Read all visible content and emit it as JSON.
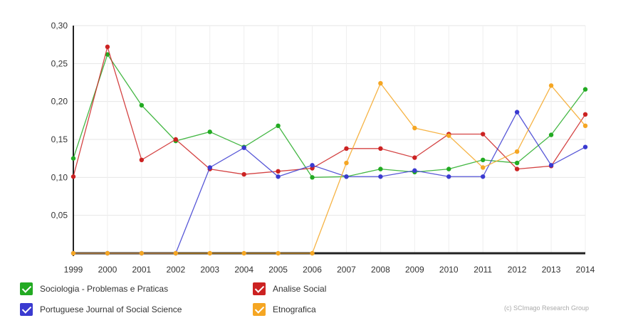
{
  "chart_data": {
    "type": "line",
    "x": [
      "1999",
      "2000",
      "2001",
      "2002",
      "2003",
      "2004",
      "2005",
      "2006",
      "2007",
      "2008",
      "2009",
      "2010",
      "2011",
      "2012",
      "2013",
      "2014"
    ],
    "ylim": [
      0,
      0.3
    ],
    "yticks": [
      "0,30",
      "0,25",
      "0,20",
      "0,15",
      "0,10",
      "0,05"
    ],
    "ytick_values": [
      0.3,
      0.25,
      0.2,
      0.15,
      0.1,
      0.05
    ],
    "grid": true,
    "legend_position": "bottom",
    "series": [
      {
        "name": "Sociologia - Problemas e Praticas",
        "color": "#22aa22",
        "values": [
          0.125,
          0.262,
          0.195,
          0.148,
          0.16,
          0.14,
          0.168,
          0.1,
          0.101,
          0.111,
          0.107,
          0.111,
          0.123,
          0.119,
          0.156,
          0.216
        ]
      },
      {
        "name": "Analise Social",
        "color": "#cc2222",
        "values": [
          0.101,
          0.272,
          0.123,
          0.15,
          0.111,
          0.104,
          0.108,
          0.112,
          0.138,
          0.138,
          0.126,
          0.157,
          0.157,
          0.111,
          0.115,
          0.183
        ]
      },
      {
        "name": "Portuguese Journal of Social Science",
        "color": "#3a3ad0",
        "values": [
          0,
          0,
          0,
          0,
          0.113,
          0.139,
          0.101,
          0.116,
          0.101,
          0.101,
          0.109,
          0.101,
          0.101,
          0.186,
          0.116,
          0.14
        ]
      },
      {
        "name": "Etnografica",
        "color": "#f5a623",
        "values": [
          0,
          0,
          0,
          0,
          0,
          0,
          0,
          0,
          0.119,
          0.224,
          0.165,
          0.155,
          0.113,
          0.134,
          0.221,
          0.168
        ]
      }
    ]
  },
  "legend": {
    "items": [
      {
        "label": "Sociologia - Problemas e Praticas",
        "color": "#22aa22"
      },
      {
        "label": "Analise Social",
        "color": "#cc2222"
      },
      {
        "label": "Portuguese Journal of Social Science",
        "color": "#3a3ad0"
      },
      {
        "label": "Etnografica",
        "color": "#f5a623"
      }
    ]
  },
  "credit": "(c) SCImago Research Group"
}
